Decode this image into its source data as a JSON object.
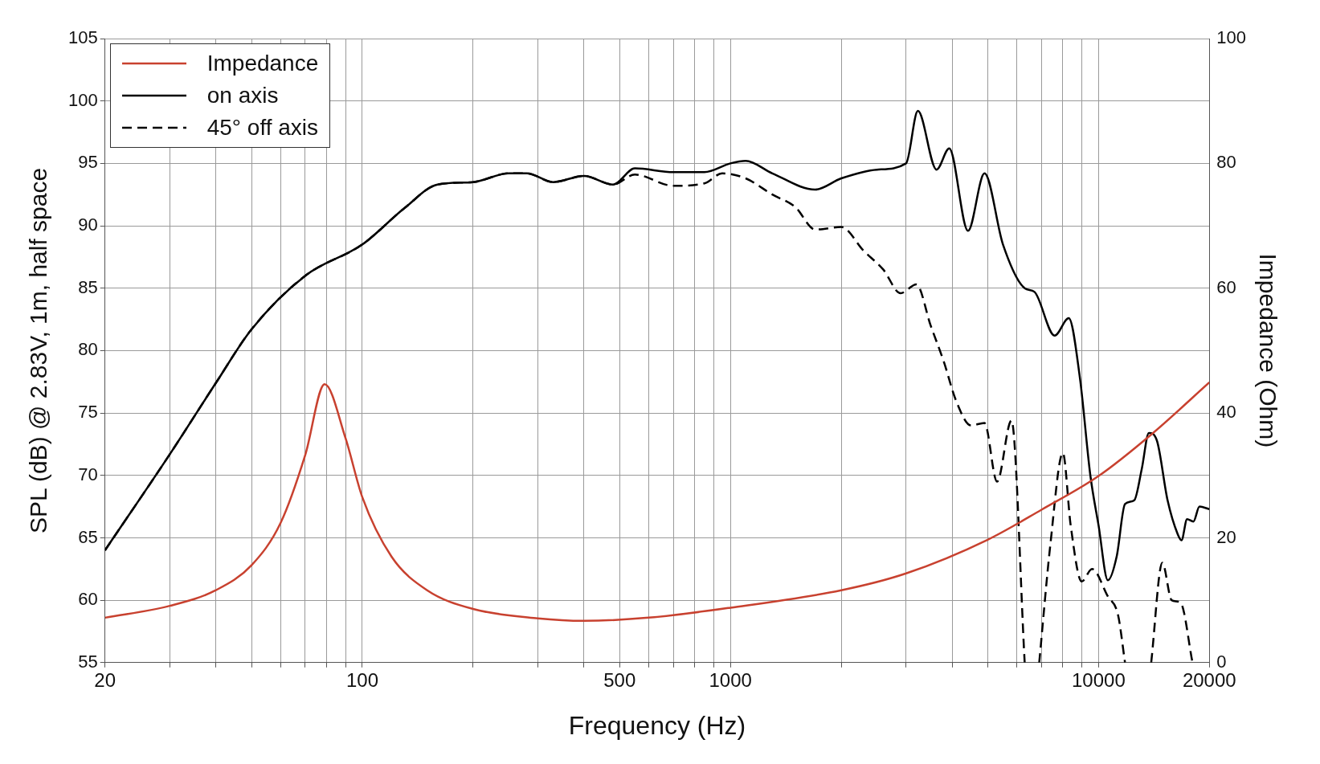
{
  "chart_data": {
    "type": "line",
    "xlabel": "Frequency (Hz)",
    "ylabel": "SPL (dB) @ 2.83V, 1m, half space",
    "y2label": "Impedance (Ohm)",
    "log": "x",
    "grid": true,
    "legend": "top left",
    "xlim": [
      20,
      20000
    ],
    "xticks": [
      20,
      {
        "value": 30,
        "label": null
      },
      {
        "value": 40,
        "label": null
      },
      {
        "value": 50,
        "label": null
      },
      {
        "value": 60,
        "label": null
      },
      {
        "value": 70,
        "label": null
      },
      {
        "value": 80,
        "label": null
      },
      {
        "value": 90,
        "label": null
      },
      100,
      {
        "value": 200,
        "label": null
      },
      {
        "value": 300,
        "label": null
      },
      {
        "value": 400,
        "label": null
      },
      500,
      {
        "value": 600,
        "label": null
      },
      {
        "value": 700,
        "label": null
      },
      {
        "value": 800,
        "label": null
      },
      {
        "value": 900,
        "label": null
      },
      1000,
      {
        "value": 2000,
        "label": null
      },
      {
        "value": 3000,
        "label": null
      },
      {
        "value": 4000,
        "label": null
      },
      {
        "value": 5000,
        "label": null
      },
      {
        "value": 6000,
        "label": null
      },
      {
        "value": 7000,
        "label": null
      },
      {
        "value": 8000,
        "label": null
      },
      {
        "value": 9000,
        "label": null
      },
      10000,
      20000
    ],
    "ylim": [
      55,
      105
    ],
    "yticks": [
      55,
      60,
      65,
      70,
      75,
      80,
      85,
      90,
      95,
      100,
      105
    ],
    "y2lim": [
      0,
      100
    ],
    "y2ticks": [
      0,
      20,
      40,
      60,
      80,
      100
    ],
    "series": [
      {
        "name": "Impedance",
        "color": "#c8412f",
        "axis": "y2",
        "line_style": "solid",
        "x": [
          20,
          30,
          40,
          50,
          60,
          70,
          79,
          90,
          100,
          120,
          150,
          200,
          300,
          400,
          600,
          1000,
          2000,
          3000,
          5000,
          7000,
          10000,
          14000,
          20000
        ],
        "values": [
          7.2,
          9.1,
          11.6,
          15.6,
          22.4,
          33.3,
          44.6,
          36,
          26.5,
          17,
          11.6,
          8.6,
          7.1,
          6.7,
          7.2,
          8.8,
          11.6,
          14.3,
          19.7,
          24.5,
          29.9,
          36.7,
          44.9
        ]
      },
      {
        "name": "on axis",
        "color": "#000000",
        "axis": "y",
        "line_style": "solid",
        "x": [
          20,
          30,
          40,
          50,
          70,
          100,
          130,
          160,
          200,
          250,
          280,
          330,
          400,
          480,
          550,
          700,
          850,
          1000,
          1100,
          1300,
          1700,
          2000,
          2500,
          3000,
          3230,
          3630,
          3930,
          4420,
          4900,
          5500,
          6300,
          6700,
          7600,
          8300,
          8900,
          9500,
          10000,
          10600,
          11200,
          11800,
          12500,
          13100,
          13700,
          14400,
          15400,
          16400,
          16800,
          17400,
          18100,
          18800,
          20000
        ],
        "values": [
          64,
          71.7,
          77.4,
          81.7,
          86,
          88.5,
          91.4,
          93.3,
          93.5,
          94.2,
          94.2,
          93.5,
          94,
          93.3,
          94.6,
          94.3,
          94.3,
          95,
          95.2,
          94.2,
          92.9,
          93.8,
          94.5,
          95,
          99.2,
          94.5,
          96.2,
          89.6,
          94.2,
          88.5,
          85,
          84.7,
          81.2,
          82.6,
          77.8,
          70,
          66,
          61.6,
          63.5,
          67.7,
          68,
          70.5,
          73.4,
          72.8,
          68,
          65.3,
          64.8,
          66.5,
          66.3,
          67.5,
          67.3
        ]
      },
      {
        "name": "45° off axis",
        "color": "#000000",
        "axis": "y",
        "line_style": "dashed",
        "x": [
          20,
          30,
          40,
          50,
          70,
          100,
          130,
          160,
          200,
          250,
          280,
          330,
          400,
          480,
          550,
          700,
          850,
          950,
          1100,
          1300,
          1500,
          1700,
          2000,
          2300,
          2600,
          2900,
          3200,
          3500,
          3800,
          4100,
          4500,
          4900,
          5300,
          5800,
          6300,
          6600,
          6900,
          7400,
          8000,
          8400,
          9000,
          9600,
          10600,
          11300,
          11800,
          12800,
          13900,
          14900,
          15800,
          16700,
          18000
        ],
        "values": [
          64,
          71.7,
          77.4,
          81.7,
          86,
          88.5,
          91.4,
          93.3,
          93.5,
          94.2,
          94.2,
          93.5,
          94,
          93.3,
          94.1,
          93.2,
          93.4,
          94.2,
          93.8,
          92.5,
          91.5,
          89.7,
          89.9,
          88,
          86.5,
          84.6,
          85.3,
          82,
          79.1,
          76,
          74,
          74.2,
          69.5,
          74.4,
          55,
          null,
          55,
          64.5,
          71.8,
          66,
          61.5,
          62.5,
          60.3,
          58.8,
          55,
          null,
          55,
          63,
          60,
          59.8,
          55
        ]
      }
    ]
  }
}
